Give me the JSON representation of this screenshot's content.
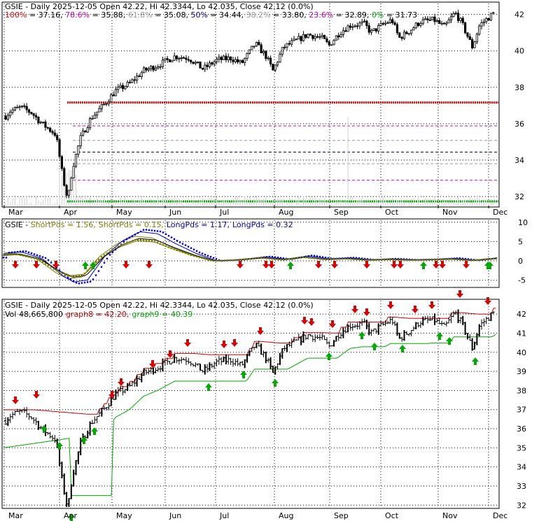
{
  "chart_data": [
    {
      "type": "candlestick",
      "header": {
        "symbol": "GSIE",
        "summary": " - Daily 2025-12-05 Open 42.22, Hi 42.3344, Lo 42.035, Close 42.12 (0.0%)"
      },
      "fib_levels": [
        {
          "label": "100%",
          "value": 37.16,
          "text": "100% = 37.16",
          "color": "#ff0000"
        },
        {
          "label": "78.6%",
          "value": 35.88,
          "text": "78.6% = 35.88",
          "color": "#cc00cc"
        },
        {
          "label": "61.8%",
          "value": 35.08,
          "text": "61.8% = 35.08",
          "color": "#999999"
        },
        {
          "label": "50%",
          "value": 34.44,
          "text": "50% = 34.44",
          "color": "#000099"
        },
        {
          "label": "38.2%",
          "value": 33.8,
          "text": "38.2% = 33.80",
          "color": "#999999"
        },
        {
          "label": "23.6%",
          "value": 32.89,
          "text": "23.6% = 32.89",
          "color": "#cc00cc"
        },
        {
          "label": "0%",
          "value": 31.73,
          "text": "0% = 31.73",
          "color": "#00aa00"
        }
      ],
      "y_ticks": [
        "32",
        "34",
        "36",
        "38",
        "40",
        "42"
      ],
      "ylim": [
        31.5,
        42.6
      ],
      "x_ticks": [
        "Mar",
        "Apr",
        "May",
        "Jun",
        "Jul",
        "Aug",
        "Sep",
        "Oct",
        "Nov",
        "Dec"
      ]
    },
    {
      "type": "line",
      "header": {
        "symbol": "GSIE",
        "sep": " - "
      },
      "legend": [
        {
          "label": "ShortPds = 1.56",
          "text": "ShortPds = 1.56,",
          "color": "#808000"
        },
        {
          "label": "ShortPds = 0.15",
          "text": "ShortPds = 0.15,",
          "color": "#808000"
        },
        {
          "label": "LongPds = 1.17",
          "text": "LongPds = 1.17,",
          "color": "#0000cc"
        },
        {
          "label": "LongPds = 0.32",
          "text": "LongPds = 0.32",
          "color": "#0000cc"
        }
      ],
      "y_ticks": [
        "10",
        "5",
        "0",
        "-5"
      ],
      "ylim": [
        -6.5,
        10.5
      ]
    },
    {
      "type": "bar",
      "header": {
        "title": "GSIE - Daily 2025-12-05 Open 42.22, Hi 42.3344, Lo 42.035, Close 42.12 (0.0%)",
        "vol": "Vol 48,665,800",
        "graph8": "graph8 = 42.20,",
        "graph9": "graph9 = 40.39"
      },
      "colors": {
        "graph8": "#cc0000",
        "graph9": "#00aa00"
      },
      "y_ticks": [
        "32",
        "33",
        "34",
        "35",
        "36",
        "37",
        "38",
        "39",
        "40",
        "41",
        "42"
      ],
      "ylim": [
        31.9,
        42.7
      ],
      "x_ticks": [
        "Apr",
        "May",
        "Jun",
        "Jul",
        "Aug",
        "Sep",
        "Oct",
        "Nov",
        "Dec"
      ],
      "x_ticks_partial": [
        "Mar"
      ]
    }
  ]
}
